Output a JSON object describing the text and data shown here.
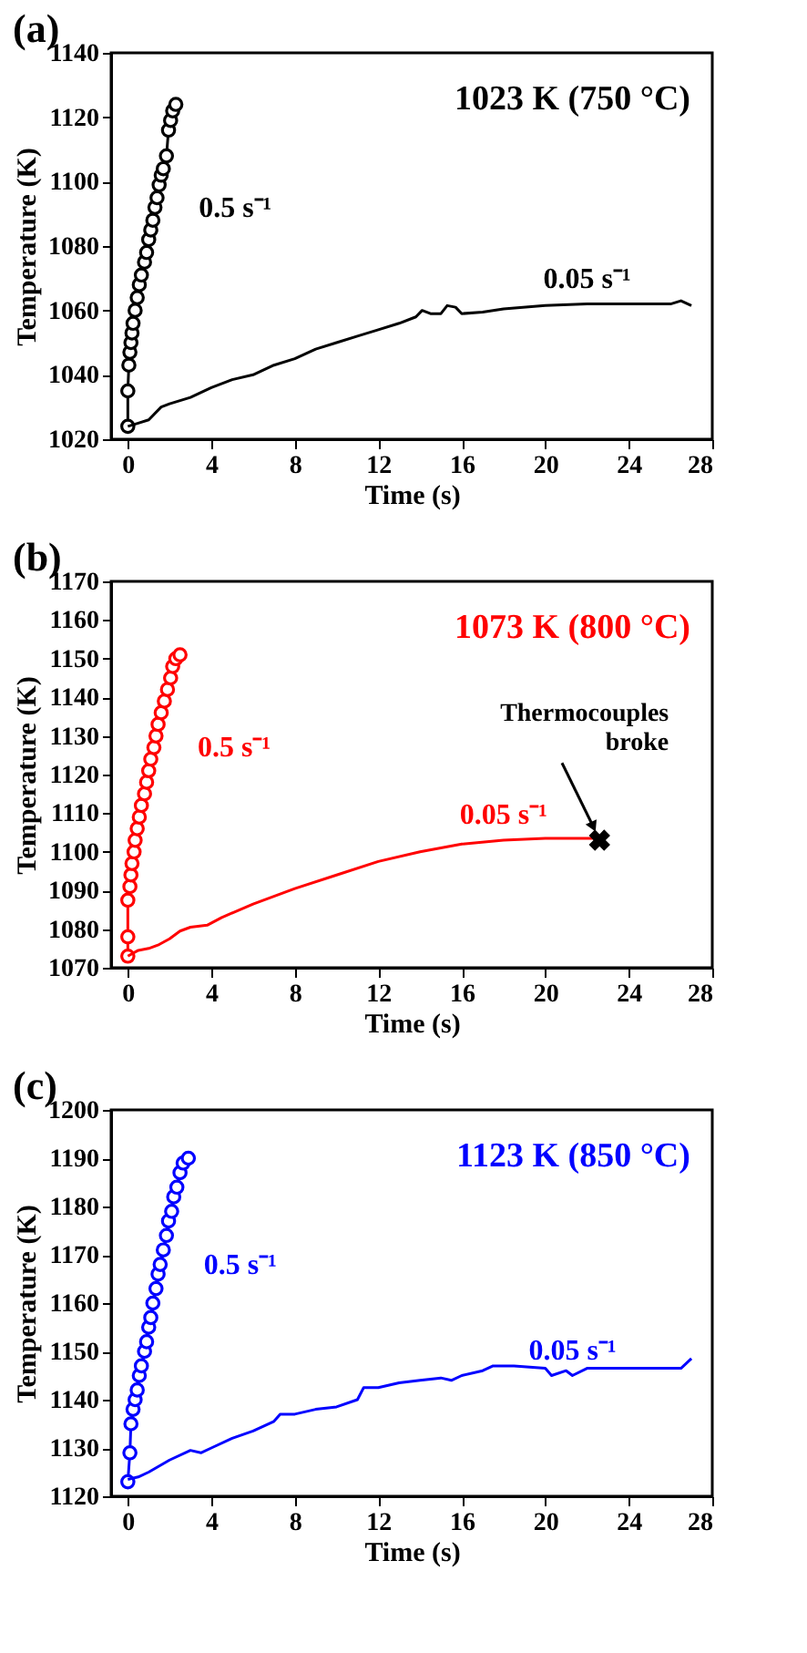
{
  "chart_data": [
    {
      "type": "line",
      "title": "(a)",
      "annotations": [
        "1023 K (750 °C)"
      ],
      "xlabel": "Time (s)",
      "ylabel": "Temperature (K)",
      "xlim": [
        -0.8,
        28
      ],
      "xticks": [
        0,
        4,
        8,
        12,
        16,
        20,
        24,
        28
      ],
      "ylim": [
        1020,
        1140
      ],
      "yticks": [
        1020,
        1040,
        1060,
        1080,
        1100,
        1120,
        1140
      ],
      "grid": false,
      "series": [
        {
          "name": "0.5 s⁻¹",
          "color": "#000000",
          "marker": "circle",
          "x": [
            0,
            0,
            0.05,
            0.1,
            0.15,
            0.2,
            0.25,
            0.35,
            0.45,
            0.55,
            0.65,
            0.8,
            0.9,
            1.0,
            1.1,
            1.2,
            1.3,
            1.4,
            1.5,
            1.6,
            1.7,
            1.85,
            1.95,
            2.05,
            2.15,
            2.3
          ],
          "values": [
            1024,
            1035,
            1043,
            1047,
            1050,
            1053,
            1056,
            1060,
            1064,
            1068,
            1071,
            1075,
            1078,
            1082,
            1085,
            1088,
            1092,
            1095,
            1099,
            1102,
            1104,
            1108,
            1116,
            1119,
            1122,
            1124
          ]
        },
        {
          "name": "0.05 s⁻¹",
          "color": "#000000",
          "marker": "none",
          "x": [
            0,
            0.5,
            1,
            1.6,
            2,
            3,
            4,
            5,
            6,
            7,
            8,
            9,
            10,
            11,
            12,
            13,
            13.8,
            14.1,
            14.5,
            15,
            15.3,
            15.7,
            16,
            17,
            18,
            20,
            22,
            24,
            26,
            26.5,
            27
          ],
          "values": [
            1024,
            1025,
            1026,
            1030,
            1031,
            1033,
            1036,
            1038.5,
            1040,
            1043,
            1045,
            1048,
            1050,
            1052,
            1054,
            1056,
            1058,
            1060,
            1059,
            1059,
            1061.5,
            1061,
            1059,
            1059.5,
            1060.5,
            1061.5,
            1062,
            1062,
            1062,
            1063,
            1061.5
          ]
        }
      ]
    },
    {
      "type": "line",
      "title": "(b)",
      "annotations": [
        "1073 K (800 °C)",
        {
          "text": "Thermocouples\nbroke",
          "x": 22.6,
          "y": 1103
        }
      ],
      "xlabel": "Time (s)",
      "ylabel": "Temperature (K)",
      "xlim": [
        -0.8,
        28
      ],
      "xticks": [
        0,
        4,
        8,
        12,
        16,
        20,
        24,
        28
      ],
      "ylim": [
        1070,
        1170
      ],
      "yticks": [
        1070,
        1080,
        1090,
        1100,
        1110,
        1120,
        1130,
        1140,
        1150,
        1160,
        1170
      ],
      "grid": false,
      "series": [
        {
          "name": "0.5 s⁻¹",
          "color": "#ff0000",
          "marker": "circle",
          "x": [
            0,
            0,
            0,
            0.1,
            0.15,
            0.2,
            0.3,
            0.35,
            0.45,
            0.55,
            0.65,
            0.8,
            0.9,
            1,
            1.1,
            1.25,
            1.35,
            1.45,
            1.6,
            1.75,
            1.9,
            2.05,
            2.15,
            2.3,
            2.5
          ],
          "values": [
            1073,
            1078,
            1087.5,
            1091,
            1094,
            1097,
            1100,
            1103,
            1106,
            1109,
            1112,
            1115,
            1118,
            1121,
            1124,
            1127,
            1130,
            1133,
            1136,
            1139,
            1142,
            1145,
            1148,
            1150,
            1151
          ]
        },
        {
          "name": "0.05 s⁻¹",
          "color": "#ff0000",
          "marker": "none",
          "x": [
            0,
            0.5,
            1,
            1.5,
            2,
            2.5,
            3,
            3.8,
            4.5,
            6,
            8,
            10,
            12,
            14,
            16,
            18,
            20,
            22.6
          ],
          "values": [
            1073,
            1074.5,
            1075,
            1076,
            1077.5,
            1079.5,
            1080.5,
            1081,
            1083,
            1086.5,
            1090.5,
            1094,
            1097.5,
            1100,
            1102,
            1103,
            1103.5,
            1103.5
          ]
        },
        {
          "type": "scatter",
          "color": "#000000",
          "marker": "cross",
          "x": [
            22.6
          ],
          "values": [
            1103
          ]
        }
      ]
    },
    {
      "type": "line",
      "title": "(c)",
      "annotations": [
        "1123 K (850 °C)"
      ],
      "xlabel": "Time (s)",
      "ylabel": "Temperature (K)",
      "xlim": [
        -0.8,
        28
      ],
      "xticks": [
        0,
        4,
        8,
        12,
        16,
        20,
        24,
        28
      ],
      "ylim": [
        1120,
        1200
      ],
      "yticks": [
        1120,
        1130,
        1140,
        1150,
        1160,
        1170,
        1180,
        1190,
        1200
      ],
      "grid": false,
      "series": [
        {
          "name": "0.5 s⁻¹",
          "color": "#0000ff",
          "marker": "circle",
          "x": [
            0,
            0.1,
            0.15,
            0.25,
            0.35,
            0.45,
            0.55,
            0.65,
            0.8,
            0.9,
            1,
            1.1,
            1.2,
            1.35,
            1.45,
            1.55,
            1.7,
            1.85,
            1.95,
            2.1,
            2.2,
            2.35,
            2.5,
            2.65,
            2.9
          ],
          "values": [
            1123,
            1129,
            1135,
            1138,
            1140,
            1142,
            1145,
            1147,
            1150,
            1152,
            1155,
            1157,
            1160,
            1163,
            1166,
            1168,
            1171,
            1174,
            1177,
            1179,
            1182,
            1184,
            1187,
            1189,
            1190
          ]
        },
        {
          "name": "0.05 s⁻¹",
          "color": "#0000ff",
          "marker": "none",
          "x": [
            0,
            0.5,
            1,
            2,
            3,
            3.5,
            4,
            5,
            6,
            7,
            7.3,
            8,
            9,
            10,
            11,
            11.3,
            12,
            13,
            14,
            15,
            15.5,
            16,
            17,
            17.5,
            18.5,
            20,
            20.3,
            21,
            21.3,
            22,
            24,
            26.5,
            27
          ],
          "values": [
            1123.5,
            1124,
            1125,
            1127.5,
            1129.5,
            1129,
            1130,
            1132,
            1133.5,
            1135.5,
            1137,
            1137,
            1138,
            1138.5,
            1140,
            1142.5,
            1142.5,
            1143.5,
            1144,
            1144.5,
            1144,
            1145,
            1146,
            1147,
            1147,
            1146.5,
            1145,
            1146,
            1145,
            1146.5,
            1146.5,
            1146.5,
            1148.5
          ]
        }
      ]
    }
  ]
}
